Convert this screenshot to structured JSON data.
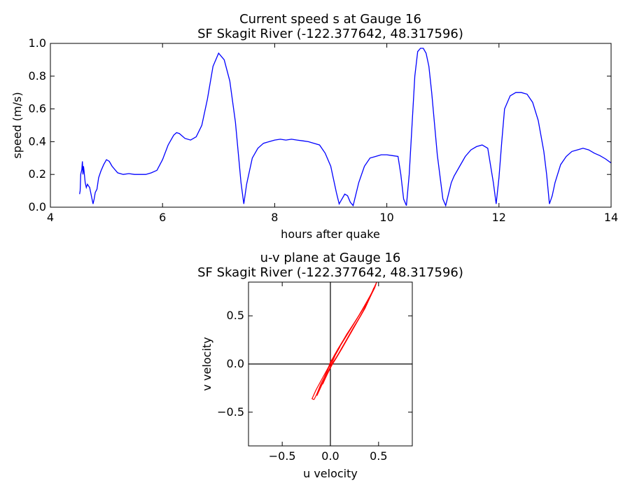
{
  "chart_data": [
    {
      "type": "line",
      "title": [
        "Current speed s at Gauge 16",
        "SF Skagit River  (-122.377642, 48.317596)"
      ],
      "xlabel": "hours after quake",
      "ylabel": "speed (m/s)",
      "xlim": [
        4,
        14
      ],
      "ylim": [
        0,
        1.0
      ],
      "xticks": [
        4,
        6,
        8,
        10,
        12,
        14
      ],
      "xtick_labels": [
        "4",
        "6",
        "8",
        "10",
        "12",
        "14"
      ],
      "yticks": [
        0.0,
        0.2,
        0.4,
        0.6,
        0.8,
        1.0
      ],
      "ytick_labels": [
        "0.0",
        "0.2",
        "0.4",
        "0.6",
        "0.8",
        "1.0"
      ],
      "grid": false,
      "color": "#0000ff",
      "series": [
        {
          "x": [
            4.52,
            4.53,
            4.54,
            4.56,
            4.57,
            4.58,
            4.59,
            4.6,
            4.62,
            4.64,
            4.66,
            4.68,
            4.7,
            4.73,
            4.76,
            4.78,
            4.8,
            4.83,
            4.86,
            4.9,
            4.95,
            5.0,
            5.05,
            5.1,
            5.2,
            5.3,
            5.4,
            5.5,
            5.6,
            5.7,
            5.8,
            5.9,
            6.0,
            6.1,
            6.2,
            6.25,
            6.3,
            6.4,
            6.5,
            6.6,
            6.7,
            6.8,
            6.9,
            7.0,
            7.1,
            7.2,
            7.3,
            7.4,
            7.45,
            7.5,
            7.6,
            7.7,
            7.8,
            7.9,
            8.0,
            8.1,
            8.2,
            8.3,
            8.4,
            8.5,
            8.6,
            8.7,
            8.8,
            8.9,
            9.0,
            9.1,
            9.15,
            9.2,
            9.25,
            9.3,
            9.35,
            9.4,
            9.5,
            9.6,
            9.7,
            9.8,
            9.9,
            10.0,
            10.1,
            10.2,
            10.25,
            10.3,
            10.35,
            10.4,
            10.5,
            10.55,
            10.6,
            10.65,
            10.7,
            10.75,
            10.8,
            10.9,
            11.0,
            11.05,
            11.1,
            11.15,
            11.2,
            11.3,
            11.4,
            11.5,
            11.6,
            11.7,
            11.8,
            11.9,
            11.95,
            12.0,
            12.05,
            12.1,
            12.2,
            12.3,
            12.4,
            12.5,
            12.6,
            12.7,
            12.8,
            12.85,
            12.9,
            12.95,
            13.0,
            13.1,
            13.2,
            13.3,
            13.4,
            13.5,
            13.6,
            13.7,
            13.8,
            13.9,
            14.0
          ],
          "y": [
            0.08,
            0.1,
            0.2,
            0.23,
            0.28,
            0.2,
            0.25,
            0.22,
            0.15,
            0.12,
            0.14,
            0.13,
            0.12,
            0.07,
            0.02,
            0.05,
            0.09,
            0.11,
            0.18,
            0.22,
            0.26,
            0.29,
            0.28,
            0.25,
            0.21,
            0.2,
            0.205,
            0.2,
            0.2,
            0.2,
            0.21,
            0.225,
            0.29,
            0.38,
            0.44,
            0.455,
            0.45,
            0.42,
            0.41,
            0.43,
            0.5,
            0.66,
            0.86,
            0.94,
            0.9,
            0.77,
            0.52,
            0.15,
            0.02,
            0.14,
            0.3,
            0.36,
            0.39,
            0.4,
            0.41,
            0.415,
            0.41,
            0.415,
            0.41,
            0.405,
            0.4,
            0.39,
            0.38,
            0.33,
            0.25,
            0.09,
            0.02,
            0.05,
            0.08,
            0.07,
            0.03,
            0.01,
            0.15,
            0.25,
            0.3,
            0.31,
            0.32,
            0.32,
            0.315,
            0.31,
            0.2,
            0.05,
            0.01,
            0.2,
            0.8,
            0.95,
            0.97,
            0.97,
            0.94,
            0.86,
            0.7,
            0.32,
            0.05,
            0.01,
            0.08,
            0.15,
            0.19,
            0.25,
            0.31,
            0.35,
            0.37,
            0.38,
            0.36,
            0.15,
            0.02,
            0.18,
            0.4,
            0.6,
            0.68,
            0.7,
            0.7,
            0.69,
            0.64,
            0.53,
            0.34,
            0.2,
            0.02,
            0.07,
            0.15,
            0.26,
            0.31,
            0.34,
            0.35,
            0.36,
            0.35,
            0.33,
            0.315,
            0.295,
            0.27
          ]
        }
      ]
    },
    {
      "type": "line",
      "title": [
        "u-v plane at Gauge 16",
        "SF Skagit River  (-122.377642, 48.317596)"
      ],
      "xlabel": "u velocity",
      "ylabel": "v velocity",
      "xlim": [
        -0.85,
        0.85
      ],
      "ylim": [
        -0.85,
        0.85
      ],
      "xticks": [
        -0.5,
        0.0,
        0.5
      ],
      "xtick_labels": [
        "−0.5",
        "0.0",
        "0.5"
      ],
      "yticks": [
        -0.5,
        0.0,
        0.5
      ],
      "ytick_labels": [
        "−0.5",
        "0.0",
        "0.5"
      ],
      "axes_lines": [
        0,
        0
      ],
      "color": "#ff0000",
      "series": [
        {
          "x": [
            -0.17,
            -0.12,
            -0.07,
            -0.02,
            0.03,
            0.1,
            0.18,
            0.26,
            0.34,
            0.41,
            0.46,
            0.48
          ],
          "y": [
            -0.37,
            -0.27,
            -0.17,
            -0.07,
            0.02,
            0.13,
            0.27,
            0.41,
            0.55,
            0.69,
            0.79,
            0.85
          ]
        },
        {
          "x": [
            0.48,
            0.42,
            0.34,
            0.27,
            0.19,
            0.11,
            0.04,
            -0.03,
            -0.09,
            -0.15,
            -0.19,
            -0.17
          ],
          "y": [
            0.85,
            0.72,
            0.58,
            0.46,
            0.33,
            0.2,
            0.08,
            -0.05,
            -0.16,
            -0.27,
            -0.36,
            -0.37
          ]
        },
        {
          "x": [
            -0.14,
            -0.09,
            -0.04,
            0.01,
            0.06,
            0.12,
            0.2,
            0.28,
            0.36,
            0.42,
            0.45
          ],
          "y": [
            -0.33,
            -0.22,
            -0.12,
            -0.02,
            0.06,
            0.16,
            0.3,
            0.44,
            0.58,
            0.71,
            0.79
          ]
        },
        {
          "x": [
            0.44,
            0.37,
            0.3,
            0.23,
            0.15,
            0.08,
            0.02,
            -0.04,
            -0.1,
            -0.14
          ],
          "y": [
            0.76,
            0.63,
            0.51,
            0.4,
            0.27,
            0.16,
            0.05,
            -0.09,
            -0.21,
            -0.31
          ]
        },
        {
          "x": [
            -0.08,
            -0.03,
            0.02,
            0.08,
            0.16,
            0.24,
            0.32,
            0.38,
            0.42
          ],
          "y": [
            -0.21,
            -0.1,
            0.0,
            0.1,
            0.24,
            0.38,
            0.51,
            0.63,
            0.72
          ]
        },
        {
          "x": [
            0.39,
            0.32,
            0.25,
            0.17,
            0.1,
            0.04,
            -0.02,
            -0.06
          ],
          "y": [
            0.66,
            0.54,
            0.43,
            0.31,
            0.19,
            0.09,
            -0.04,
            -0.13
          ]
        },
        {
          "x": [
            -0.04,
            0.0,
            0.05,
            0.1,
            0.05,
            0.01,
            -0.03
          ],
          "y": [
            -0.09,
            0.02,
            0.1,
            0.18,
            0.09,
            0.0,
            -0.1
          ]
        }
      ]
    }
  ]
}
